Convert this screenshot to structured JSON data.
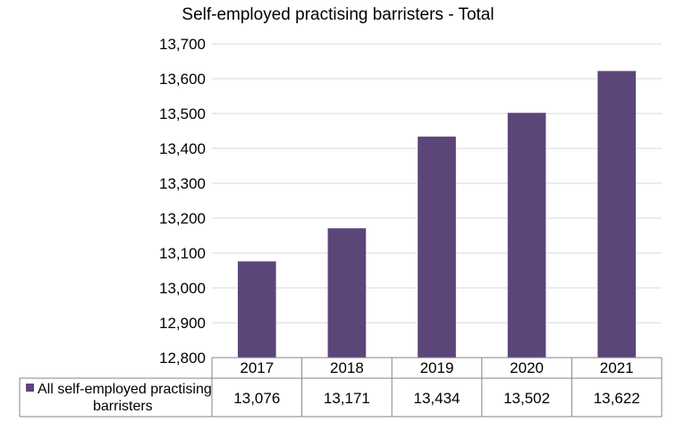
{
  "chart_data": {
    "type": "bar",
    "title": "Self-employed practising barristers - Total",
    "categories": [
      "2017",
      "2018",
      "2019",
      "2020",
      "2021"
    ],
    "series": [
      {
        "name": "All self-employed practising barristers",
        "values": [
          13076,
          13171,
          13434,
          13502,
          13622
        ],
        "value_labels": [
          "13,076",
          "13,171",
          "13,434",
          "13,502",
          "13,622"
        ],
        "color": "#5b4579"
      }
    ],
    "ylim": [
      12800,
      13700
    ],
    "y_ticks": [
      "12,800",
      "12,900",
      "13,000",
      "13,100",
      "13,200",
      "13,300",
      "13,400",
      "13,500",
      "13,600",
      "13,700"
    ],
    "grid": true,
    "data_table": true,
    "xlabel": "",
    "ylabel": ""
  },
  "colors": {
    "bar": "#5b4579",
    "grid": "#d9d9d9",
    "axis": "#868686"
  }
}
